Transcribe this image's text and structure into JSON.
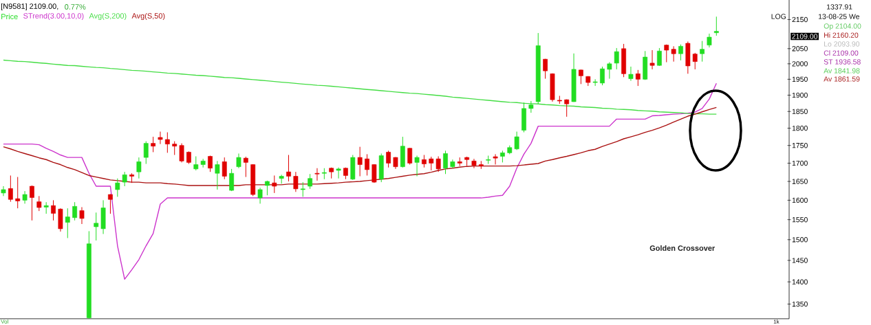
{
  "chart_data": {
    "type": "candlestick",
    "title": "[N9581] 2109.00,",
    "subtitle": "0.77%",
    "categories": [
      null,
      null,
      null,
      null,
      null,
      null,
      null,
      null,
      null,
      null,
      null,
      null,
      null,
      null,
      null,
      null,
      null,
      null,
      null,
      null,
      null,
      null,
      null,
      null,
      null,
      null,
      null,
      null,
      null,
      null,
      null,
      null,
      null,
      null,
      null,
      null,
      null,
      null,
      null,
      null,
      null,
      null,
      null,
      null,
      null,
      null,
      null,
      null,
      null,
      null,
      null,
      null,
      null,
      null,
      null,
      null,
      null,
      null,
      null,
      null,
      null,
      null,
      null,
      null,
      null,
      null,
      null,
      null,
      null,
      null,
      null,
      null,
      null,
      null,
      null,
      null,
      null,
      null,
      null,
      null,
      null,
      null,
      null,
      null,
      null,
      null,
      null,
      null,
      null,
      null,
      null,
      null,
      null,
      null,
      null,
      null,
      null,
      null,
      null,
      null,
      null
    ],
    "log": true,
    "ylim": [
      1318,
      2220
    ],
    "yticks": [
      1350,
      1400,
      1450,
      1500,
      1550,
      1600,
      1650,
      1700,
      1750,
      1800,
      1850,
      1900,
      1950,
      2000,
      2050,
      2150
    ],
    "grid": false,
    "legend": "top left",
    "tick_labels": "y",
    "annotations": [
      "Golden Crossover",
      "1337.91",
      "13-08-25 We",
      "Op 2104.00",
      "Hi 2160.20",
      "Lo 2093.90",
      "Cl 2109.00",
      "ST 1936.58",
      "Av 1841.98",
      "Av 1861.59",
      "2109.00",
      "LOG",
      "Vol",
      "1k"
    ],
    "series": [
      {
        "name": "Price",
        "ohlc": [
          [
            1619,
            1637,
            1611,
            1628
          ],
          [
            1631,
            1666,
            1596,
            1602
          ],
          [
            1604,
            1662,
            1579,
            1598
          ],
          [
            1600,
            1624,
            1591,
            1615
          ],
          [
            1637,
            1639,
            1548,
            1607
          ],
          [
            1596,
            1611,
            1572,
            1581
          ],
          [
            1582,
            1595,
            1565,
            1586
          ],
          [
            1586,
            1600,
            1548,
            1566
          ],
          [
            1577,
            1579,
            1520,
            1527
          ],
          [
            1543,
            1579,
            1504,
            1557
          ],
          [
            1555,
            1595,
            1548,
            1584
          ],
          [
            1573,
            1582,
            1539,
            1553
          ],
          [
            1320,
            1521,
            1318,
            1490
          ],
          [
            1532,
            1568,
            1498,
            1541
          ],
          [
            1527,
            1600,
            1514,
            1580
          ],
          [
            1615,
            1616,
            1565,
            1602
          ],
          [
            1628,
            1658,
            1609,
            1646
          ],
          [
            1648,
            1676,
            1637,
            1668
          ],
          [
            1668,
            1672,
            1646,
            1664
          ],
          [
            1676,
            1716,
            1658,
            1704
          ],
          [
            1716,
            1762,
            1698,
            1756
          ],
          [
            1756,
            1775,
            1731,
            1748
          ],
          [
            1773,
            1790,
            1754,
            1767
          ],
          [
            1767,
            1788,
            1729,
            1754
          ],
          [
            1754,
            1762,
            1723,
            1748
          ],
          [
            1750,
            1756,
            1702,
            1706
          ],
          [
            1731,
            1733,
            1698,
            1702
          ],
          [
            1684,
            1719,
            1680,
            1696
          ],
          [
            1696,
            1712,
            1688,
            1706
          ],
          [
            1719,
            1721,
            1676,
            1686
          ],
          [
            1672,
            1706,
            1628,
            1696
          ],
          [
            1704,
            1716,
            1656,
            1664
          ],
          [
            1626,
            1684,
            1624,
            1672
          ],
          [
            1690,
            1727,
            1686,
            1716
          ],
          [
            1714,
            1718,
            1662,
            1702
          ],
          [
            1696,
            1697,
            1611,
            1615
          ],
          [
            1606,
            1633,
            1591,
            1628
          ],
          [
            1639,
            1652,
            1613,
            1650
          ],
          [
            1646,
            1666,
            1619,
            1637
          ],
          [
            1658,
            1668,
            1644,
            1664
          ],
          [
            1676,
            1723,
            1650,
            1664
          ],
          [
            1664,
            1676,
            1622,
            1630
          ],
          [
            1628,
            1648,
            1609,
            1630
          ],
          [
            1637,
            1670,
            1630,
            1658
          ],
          [
            1672,
            1686,
            1652,
            1670
          ],
          [
            1672,
            1686,
            1656,
            1674
          ],
          [
            1686,
            1688,
            1658,
            1676
          ],
          [
            1680,
            1688,
            1658,
            1684
          ],
          [
            1686,
            1688,
            1656,
            1666
          ],
          [
            1656,
            1723,
            1654,
            1716
          ],
          [
            1716,
            1746,
            1664,
            1696
          ],
          [
            1712,
            1725,
            1666,
            1682
          ],
          [
            1696,
            1697,
            1646,
            1648
          ],
          [
            1656,
            1727,
            1648,
            1721
          ],
          [
            1731,
            1735,
            1688,
            1700
          ],
          [
            1716,
            1717,
            1684,
            1690
          ],
          [
            1690,
            1775,
            1688,
            1748
          ],
          [
            1742,
            1743,
            1696,
            1700
          ],
          [
            1702,
            1721,
            1664,
            1716
          ],
          [
            1710,
            1723,
            1688,
            1698
          ],
          [
            1712,
            1718,
            1680,
            1700
          ],
          [
            1712,
            1719,
            1676,
            1684
          ],
          [
            1686,
            1735,
            1670,
            1727
          ],
          [
            1690,
            1710,
            1686,
            1704
          ],
          [
            1704,
            1716,
            1692,
            1700
          ],
          [
            1716,
            1718,
            1692,
            1710
          ],
          [
            1706,
            1712,
            1686,
            1694
          ],
          [
            1696,
            1706,
            1684,
            1692
          ],
          [
            1708,
            1721,
            1698,
            1710
          ],
          [
            1718,
            1725,
            1696,
            1714
          ],
          [
            1719,
            1735,
            1702,
            1729
          ],
          [
            1729,
            1750,
            1725,
            1744
          ],
          [
            1740,
            1790,
            1737,
            1775
          ],
          [
            1794,
            1877,
            1788,
            1859
          ],
          [
            1859,
            1882,
            1846,
            1870
          ],
          [
            1880,
            2103,
            1873,
            2060
          ],
          [
            2015,
            2016,
            1952,
            1977
          ],
          [
            1968,
            1969,
            1880,
            1886
          ],
          [
            1884,
            1898,
            1873,
            1882
          ],
          [
            1886,
            1887,
            1834,
            1873
          ],
          [
            1880,
            2034,
            1879,
            1982
          ],
          [
            1980,
            1981,
            1935,
            1961
          ],
          [
            1959,
            1960,
            1929,
            1940
          ],
          [
            1940,
            1950,
            1929,
            1942
          ],
          [
            1938,
            1991,
            1931,
            1984
          ],
          [
            1982,
            2005,
            1952,
            2000
          ],
          [
            2002,
            2052,
            1982,
            2040
          ],
          [
            2050,
            2066,
            1957,
            1968
          ],
          [
            1952,
            1991,
            1945,
            1966
          ],
          [
            1968,
            1980,
            1929,
            1950
          ],
          [
            1950,
            2042,
            1948,
            2022
          ],
          [
            2002,
            2045,
            1982,
            1995
          ],
          [
            1995,
            2052,
            1993,
            2042
          ],
          [
            2062,
            2064,
            2005,
            2045
          ],
          [
            2048,
            2058,
            2007,
            2033
          ],
          [
            2033,
            2064,
            2011,
            2058
          ],
          [
            2068,
            2074,
            1968,
            1993
          ],
          [
            2032,
            2036,
            1982,
            2007
          ],
          [
            2033,
            2076,
            2007,
            2048
          ],
          [
            2062,
            2101,
            2054,
            2089
          ],
          [
            2104,
            2160.2,
            2093.9,
            2109
          ]
        ],
        "colors": [
          "#22dd22",
          "#e00000",
          "#e00000",
          "#22dd22",
          "#e00000",
          "#e00000",
          "#22dd22",
          "#e00000",
          "#e00000",
          "#22dd22",
          "#22dd22",
          "#e00000",
          "#22dd22",
          "#22dd22",
          "#22dd22",
          "#e00000",
          "#22dd22",
          "#22dd22",
          "#e00000",
          "#22dd22",
          "#22dd22",
          "#e00000",
          "#e00000",
          "#e00000",
          "#e00000",
          "#e00000",
          "#e00000",
          "#22dd22",
          "#22dd22",
          "#e00000",
          "#22dd22",
          "#e00000",
          "#22dd22",
          "#22dd22",
          "#e00000",
          "#e00000",
          "#22dd22",
          "#22dd22",
          "#e00000",
          "#22dd22",
          "#e00000",
          "#e00000",
          "#22dd22",
          "#22dd22",
          "#e00000",
          "#22dd22",
          "#e00000",
          "#22dd22",
          "#e00000",
          "#22dd22",
          "#e00000",
          "#e00000",
          "#e00000",
          "#22dd22",
          "#e00000",
          "#e00000",
          "#22dd22",
          "#e00000",
          "#22dd22",
          "#e00000",
          "#e00000",
          "#e00000",
          "#22dd22",
          "#22dd22",
          "#e00000",
          "#e00000",
          "#e00000",
          "#e00000",
          "#22dd22",
          "#e00000",
          "#22dd22",
          "#22dd22",
          "#22dd22",
          "#22dd22",
          "#22dd22",
          "#22dd22",
          "#e00000",
          "#e00000",
          "#e00000",
          "#e00000",
          "#22dd22",
          "#e00000",
          "#e00000",
          "#22dd22",
          "#22dd22",
          "#22dd22",
          "#22dd22",
          "#e00000",
          "#22dd22",
          "#e00000",
          "#22dd22",
          "#e00000",
          "#22dd22",
          "#e00000",
          "#e00000",
          "#22dd22",
          "#e00000",
          "#e00000",
          "#22dd22",
          "#22dd22",
          "#22dd22"
        ]
      },
      {
        "name": "STrend(3.00,10,0)",
        "type": "line",
        "color": "#cc33cc",
        "values": [
          1754,
          1754,
          1754,
          1754,
          1754,
          1752,
          1742,
          1733,
          1723,
          1716,
          1716,
          1716,
          1672,
          1637,
          1637,
          1637,
          1485,
          1406,
          1428,
          1452,
          1485,
          1515,
          1590,
          1606,
          1606,
          1606,
          1606,
          1606,
          1606,
          1606,
          1606,
          1606,
          1606,
          1606,
          1606,
          1606,
          1606,
          1606,
          1606,
          1606,
          1606,
          1606,
          1606,
          1606,
          1606,
          1606,
          1606,
          1606,
          1606,
          1606,
          1606,
          1606,
          1606,
          1606,
          1606,
          1606,
          1606,
          1606,
          1606,
          1606,
          1606,
          1606,
          1606,
          1606,
          1606,
          1606,
          1606,
          1606,
          1608,
          1611,
          1613,
          1637,
          1686,
          1725,
          1756,
          1806,
          1806,
          1806,
          1806,
          1806,
          1806,
          1806,
          1806,
          1806,
          1806,
          1806,
          1827,
          1827,
          1827,
          1827,
          1827,
          1837,
          1838,
          1840,
          1842,
          1843,
          1845,
          1848,
          1859,
          1888,
          1937
        ]
      },
      {
        "name": "Avg(S,200)",
        "type": "line",
        "color": "#44dd44",
        "values": [
          2012,
          2010,
          2008,
          2007,
          2005,
          2003,
          2001,
          1999,
          1997,
          1995,
          1994,
          1992,
          1990,
          1988,
          1987,
          1985,
          1983,
          1981,
          1979,
          1978,
          1976,
          1974,
          1972,
          1970,
          1969,
          1967,
          1965,
          1963,
          1962,
          1960,
          1958,
          1956,
          1955,
          1953,
          1951,
          1949,
          1947,
          1945,
          1943,
          1941,
          1939,
          1937,
          1935,
          1933,
          1931,
          1930,
          1928,
          1926,
          1924,
          1922,
          1920,
          1918,
          1916,
          1914,
          1912,
          1910,
          1908,
          1906,
          1905,
          1903,
          1901,
          1899,
          1897,
          1894,
          1892,
          1890,
          1888,
          1886,
          1884,
          1882,
          1880,
          1878,
          1877,
          1875,
          1874,
          1873,
          1871,
          1870,
          1868,
          1867,
          1866,
          1864,
          1863,
          1862,
          1860,
          1859,
          1857,
          1856,
          1855,
          1853,
          1852,
          1851,
          1849,
          1848,
          1847,
          1846,
          1844,
          1843,
          1843,
          1842,
          1842
        ]
      },
      {
        "name": "Avg(S,50)",
        "type": "line",
        "color": "#aa1111",
        "values": [
          1746,
          1740,
          1733,
          1727,
          1721,
          1715,
          1710,
          1702,
          1696,
          1688,
          1682,
          1674,
          1666,
          1662,
          1658,
          1654,
          1652,
          1650,
          1648,
          1648,
          1646,
          1646,
          1646,
          1644,
          1643,
          1641,
          1639,
          1639,
          1639,
          1639,
          1639,
          1639,
          1639,
          1639,
          1641,
          1641,
          1641,
          1641,
          1641,
          1641,
          1643,
          1643,
          1643,
          1643,
          1643,
          1644,
          1645,
          1646,
          1648,
          1649,
          1650,
          1652,
          1654,
          1656,
          1658,
          1661,
          1664,
          1667,
          1669,
          1671,
          1675,
          1680,
          1684,
          1686,
          1689,
          1691,
          1692,
          1692,
          1692,
          1692,
          1692,
          1692,
          1693,
          1695,
          1697,
          1699,
          1706,
          1710,
          1715,
          1719,
          1724,
          1729,
          1735,
          1739,
          1747,
          1754,
          1761,
          1769,
          1775,
          1781,
          1788,
          1794,
          1801,
          1809,
          1818,
          1827,
          1836,
          1842,
          1849,
          1856,
          1862
        ]
      }
    ]
  }
}
